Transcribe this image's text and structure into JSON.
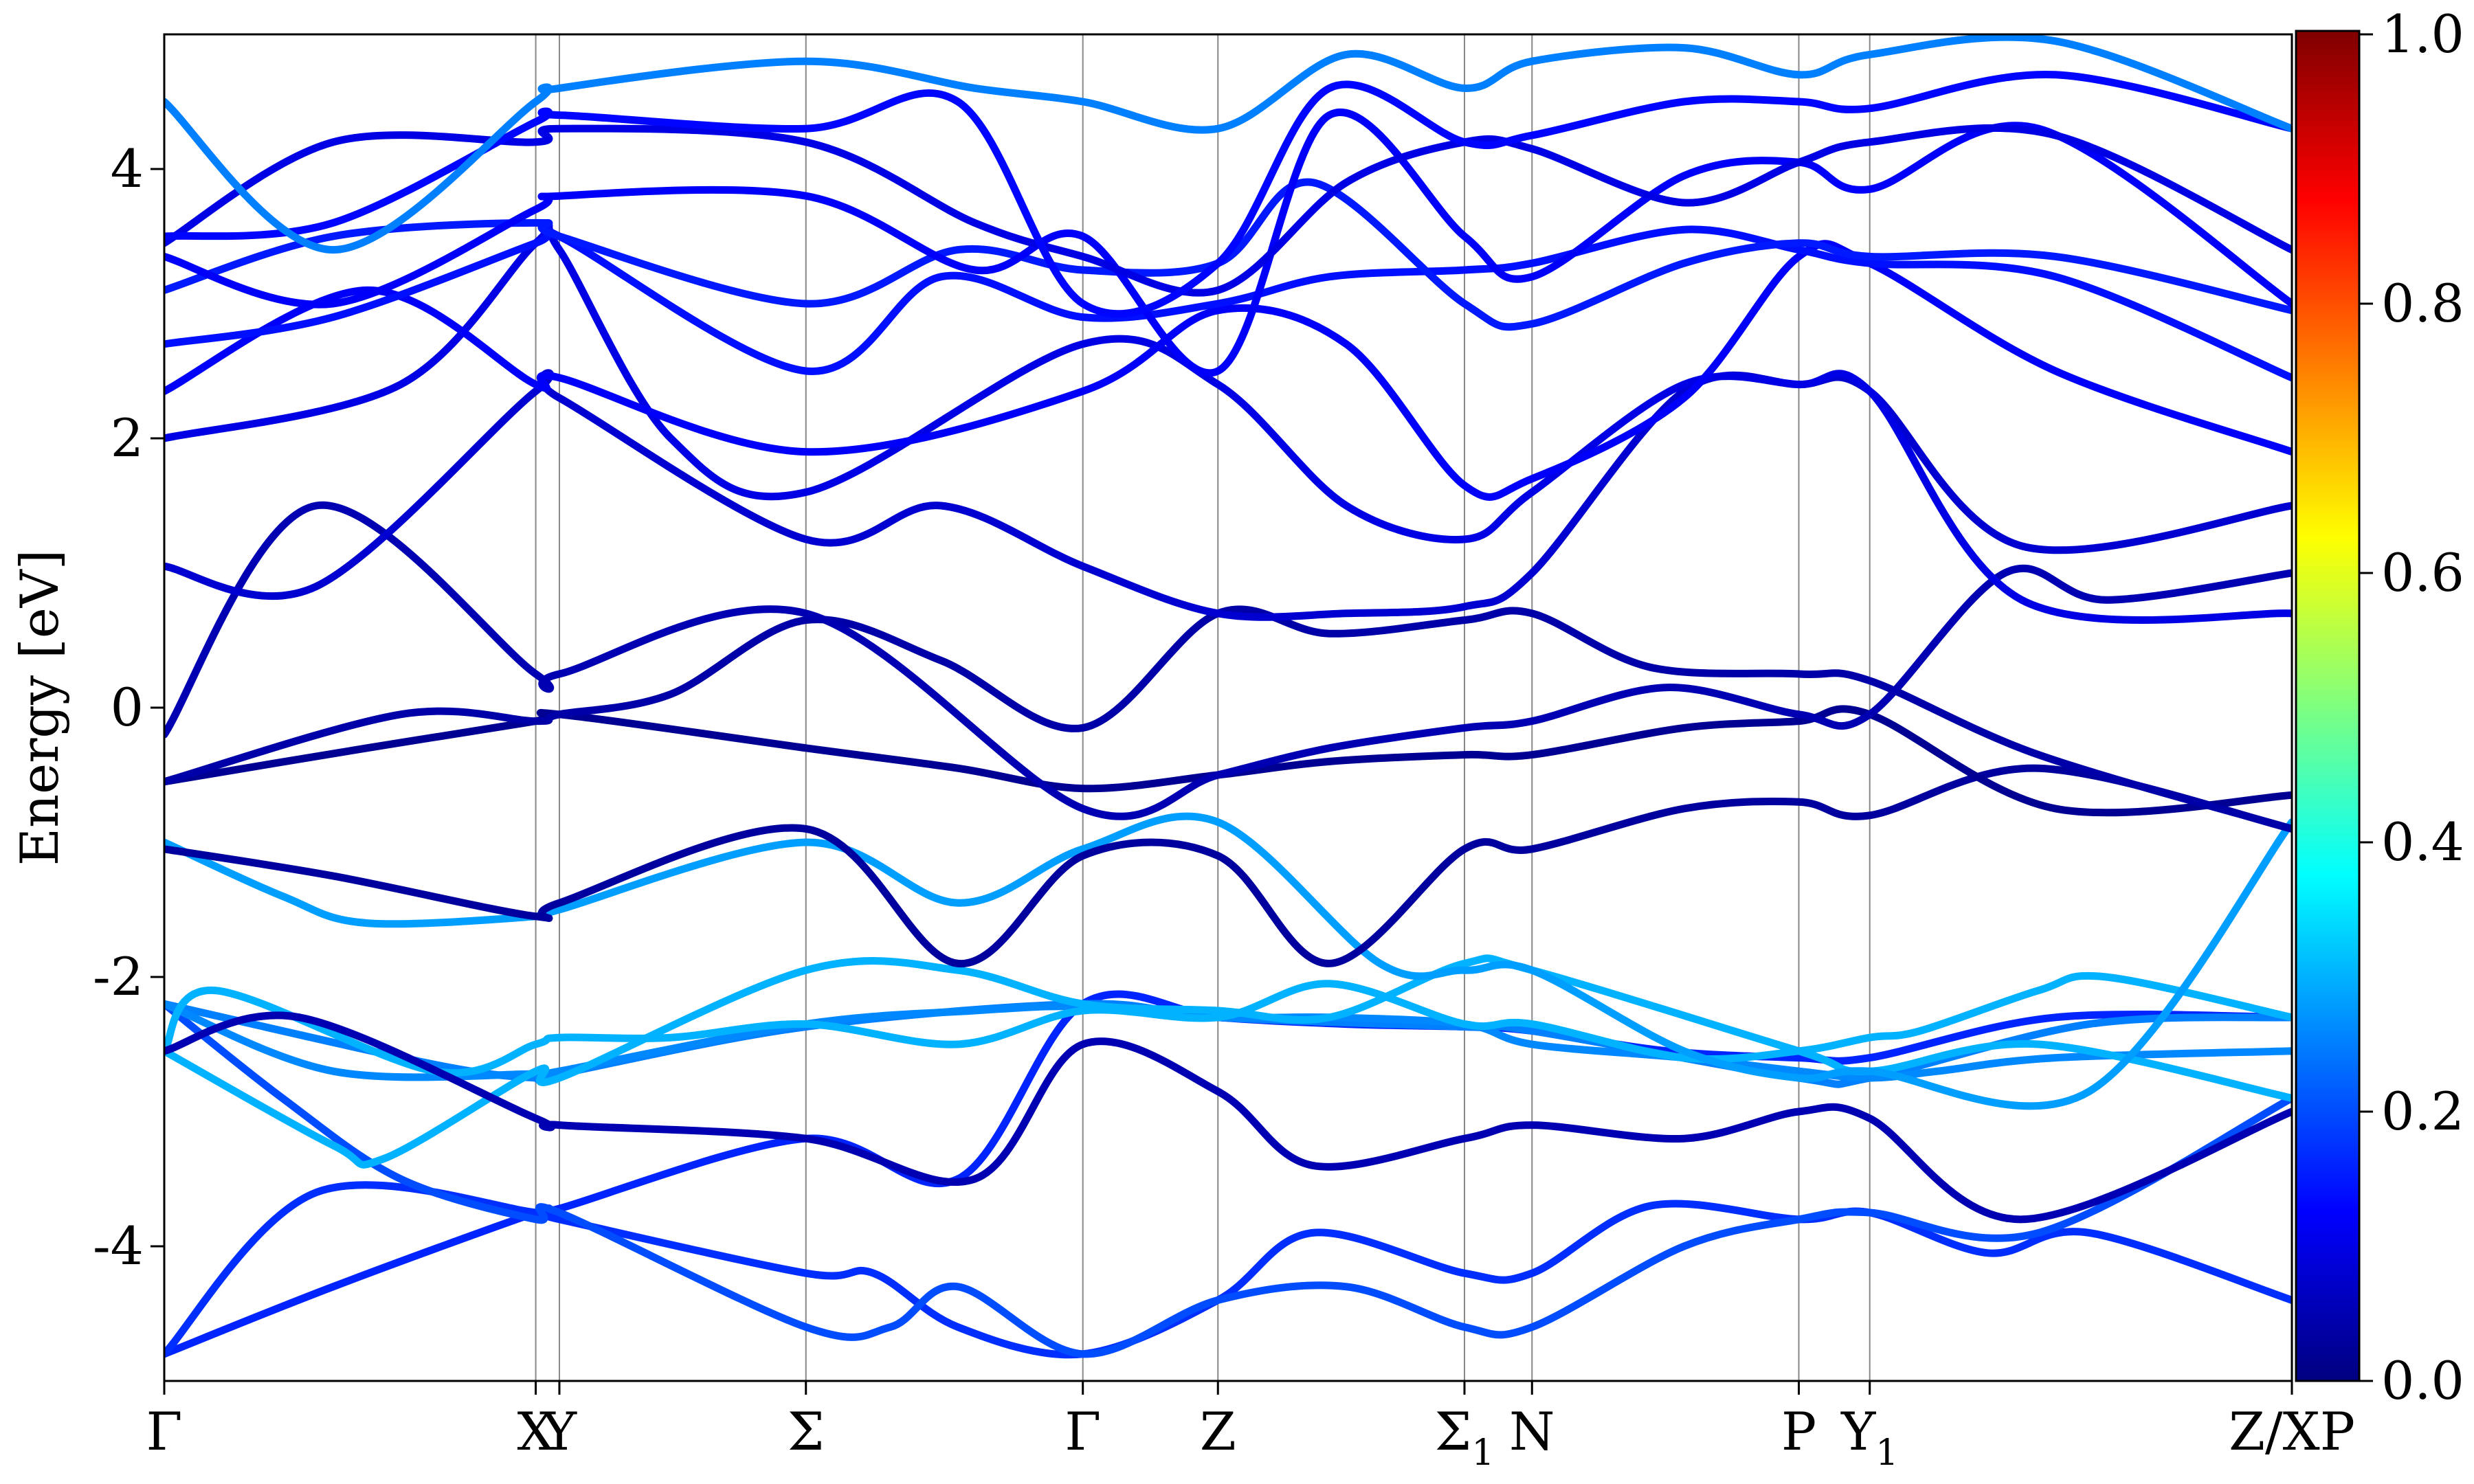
{
  "chart_data": {
    "type": "line",
    "title": "",
    "xlabel": "",
    "ylabel": "Energy [eV]",
    "ylim": [
      -5,
      5
    ],
    "yticks": [
      -4,
      -2,
      0,
      2,
      4
    ],
    "grid": false,
    "legend": "none",
    "kpath": {
      "positions": [
        0,
        1.1,
        1.17,
        1.9,
        2.72,
        3.12,
        3.85,
        4.05,
        4.84,
        5.05,
        6.3
      ],
      "labels": [
        "Γ",
        "X",
        "Y",
        "Σ",
        "Γ",
        "Z",
        "Σ1",
        "N",
        "P",
        "Y1",
        "Z/XP"
      ],
      "xlim": [
        0,
        6.3
      ],
      "tick_text": [
        "Γ",
        "XY",
        "Σ",
        "Γ",
        "Z",
        "Σ",
        "N",
        "P",
        "Y",
        "Z/XP"
      ],
      "subscripts": {
        "Σ1": "1",
        "Y1": "1"
      }
    },
    "colorbar": {
      "label": "",
      "range": [
        0,
        1
      ],
      "ticks": [
        "0.0",
        "0.2",
        "0.4",
        "0.6",
        "0.8",
        "1.0"
      ],
      "colormap": [
        "#00007f",
        "#0000ff",
        "#007fff",
        "#00ffff",
        "#7fff7f",
        "#ffff00",
        "#ff7f00",
        "#ff0000",
        "#7f0000"
      ]
    },
    "series": [
      {
        "color_value": 0.16,
        "x": [
          0,
          0.5,
          1.1,
          1.17,
          1.9,
          2.35,
          2.72,
          3.12,
          3.5,
          3.85,
          4.05,
          4.45,
          4.84,
          5.05,
          5.6,
          6.3
        ],
        "y": [
          -4.8,
          -4.3,
          -3.75,
          -3.72,
          -3.2,
          -3.5,
          -2.2,
          -2.3,
          -2.35,
          -2.37,
          -2.4,
          -2.55,
          -2.6,
          -2.6,
          -2.3,
          -2.3
        ]
      },
      {
        "color_value": 0.17,
        "x": [
          0,
          0.45,
          1.1,
          1.17,
          1.9,
          2.1,
          2.35,
          2.72,
          3.12,
          3.4,
          3.85,
          4.05,
          4.4,
          4.84,
          5.05,
          5.4,
          5.7,
          6.3
        ],
        "y": [
          -4.8,
          -3.6,
          -3.75,
          -3.8,
          -4.2,
          -4.2,
          -4.6,
          -4.8,
          -4.4,
          -3.9,
          -4.2,
          -4.2,
          -3.7,
          -3.8,
          -3.75,
          -4.05,
          -3.9,
          -4.4
        ]
      },
      {
        "color_value": 0.2,
        "x": [
          0,
          0.35,
          0.7,
          1.1,
          1.17,
          1.9,
          2.15,
          2.35,
          2.72,
          3.12,
          3.5,
          3.85,
          4.05,
          4.5,
          4.84,
          5.05,
          5.55,
          6.3
        ],
        "y": [
          -2.2,
          -2.9,
          -3.5,
          -3.8,
          -3.75,
          -4.6,
          -4.6,
          -4.3,
          -4.8,
          -4.4,
          -4.3,
          -4.6,
          -4.6,
          -4.0,
          -3.8,
          -3.75,
          -3.9,
          -2.9
        ]
      },
      {
        "color_value": 0.25,
        "x": [
          0,
          0.8,
          1.1,
          1.17,
          1.9,
          2.72,
          3.12,
          3.85,
          4.05,
          4.84,
          5.05,
          5.7,
          6.3
        ],
        "y": [
          -2.2,
          -2.65,
          -2.75,
          -2.72,
          -2.37,
          -2.2,
          -2.3,
          -2.37,
          -2.4,
          -2.75,
          -2.75,
          -2.35,
          -2.3
        ]
      },
      {
        "color_value": 0.26,
        "x": [
          0,
          0.5,
          1.1,
          1.17,
          1.9,
          2.4,
          2.72,
          3.12,
          3.45,
          3.85,
          4.05,
          4.5,
          4.84,
          5.05,
          5.25,
          5.6,
          6.3
        ],
        "y": [
          -2.2,
          -2.7,
          -2.72,
          -2.7,
          -2.35,
          -2.25,
          -2.22,
          -2.3,
          -2.3,
          -2.35,
          -2.5,
          -2.6,
          -2.7,
          -2.75,
          -2.7,
          -2.6,
          -2.55
        ]
      },
      {
        "color_value": 0.3,
        "x": [
          0,
          0.15,
          0.8,
          1.1,
          1.17,
          1.5,
          1.9,
          2.35,
          2.72,
          3.12,
          3.45,
          3.85,
          4.05,
          4.5,
          4.84,
          5.05,
          5.2,
          5.55,
          5.75,
          6.3
        ],
        "y": [
          -2.55,
          -2.1,
          -2.7,
          -2.5,
          -2.45,
          -2.45,
          -2.35,
          -2.5,
          -2.25,
          -2.3,
          -2.05,
          -2.35,
          -2.35,
          -2.6,
          -2.55,
          -2.45,
          -2.4,
          -2.1,
          -2.0,
          -2.3
        ]
      },
      {
        "color_value": 0.3,
        "x": [
          0,
          0.5,
          0.65,
          1.1,
          1.17,
          1.9,
          2.35,
          2.72,
          3.12,
          3.45,
          3.85,
          4.05,
          4.84,
          5.05,
          5.55,
          6.3
        ],
        "y": [
          -2.55,
          -3.25,
          -3.35,
          -2.7,
          -2.75,
          -1.95,
          -1.95,
          -2.2,
          -2.25,
          -2.3,
          -1.9,
          -1.95,
          -2.55,
          -2.7,
          -2.5,
          -2.9
        ]
      },
      {
        "color_value": 0.28,
        "x": [
          0,
          0.35,
          0.6,
          1.1,
          1.17,
          1.9,
          2.35,
          2.72,
          3.12,
          3.6,
          3.85,
          4.05,
          4.5,
          4.84,
          5.05,
          5.7,
          6.3
        ],
        "y": [
          -1.0,
          -1.4,
          -1.6,
          -1.55,
          -1.5,
          -1.0,
          -1.45,
          -1.05,
          -0.85,
          -1.9,
          -1.95,
          -1.95,
          -2.55,
          -2.75,
          -2.7,
          -2.85,
          -0.85
        ]
      },
      {
        "color_value": 0.05,
        "x": [
          0,
          0.4,
          1.1,
          1.17,
          1.9,
          2.4,
          2.72,
          3.12,
          3.4,
          3.85,
          4.05,
          4.5,
          4.84,
          5.05,
          5.5,
          6.3
        ],
        "y": [
          -2.55,
          -2.3,
          -3.05,
          -3.1,
          -3.2,
          -3.5,
          -2.5,
          -2.85,
          -3.4,
          -3.2,
          -3.1,
          -3.2,
          -3.0,
          -3.05,
          -3.8,
          -3.0
        ]
      },
      {
        "color_value": 0.03,
        "x": [
          0,
          0.5,
          1.1,
          1.17,
          1.9,
          2.35,
          2.72,
          3.12,
          3.45,
          3.85,
          4.05,
          4.5,
          4.84,
          5.05,
          5.55,
          6.3
        ],
        "y": [
          -1.05,
          -1.25,
          -1.55,
          -1.45,
          -0.9,
          -1.9,
          -1.1,
          -1.1,
          -1.9,
          -1.05,
          -1.05,
          -0.75,
          -0.7,
          -0.8,
          -0.45,
          -0.9
        ]
      },
      {
        "color_value": 0.02,
        "x": [
          0,
          0.6,
          1.1,
          1.17,
          1.9,
          2.35,
          2.72,
          3.12,
          3.45,
          3.85,
          4.05,
          4.5,
          4.84,
          5.05,
          5.6,
          6.3
        ],
        "y": [
          -0.55,
          -0.3,
          -0.1,
          -0.05,
          -0.3,
          -0.45,
          -0.6,
          -0.5,
          -0.4,
          -0.35,
          -0.35,
          -0.15,
          -0.1,
          -0.05,
          -0.75,
          -0.65
        ]
      },
      {
        "color_value": 0.04,
        "x": [
          0,
          0.7,
          1.1,
          1.17,
          1.5,
          1.9,
          2.3,
          2.72,
          3.12,
          3.45,
          3.85,
          4.05,
          4.4,
          4.84,
          5.05,
          5.55,
          6.3
        ],
        "y": [
          -0.55,
          -0.05,
          -0.1,
          -0.05,
          0.1,
          0.65,
          0.35,
          -0.15,
          0.7,
          0.55,
          0.65,
          0.7,
          0.3,
          0.25,
          0.2,
          -0.35,
          -0.9
        ]
      },
      {
        "color_value": 0.05,
        "x": [
          0,
          0.45,
          1.1,
          1.17,
          1.9,
          2.72,
          3.12,
          3.45,
          3.85,
          4.05,
          4.45,
          4.84,
          5.05,
          5.45,
          5.75,
          6.3
        ],
        "y": [
          -0.2,
          1.5,
          0.25,
          0.25,
          0.7,
          -0.75,
          -0.5,
          -0.3,
          -0.15,
          -0.1,
          0.15,
          -0.05,
          -0.05,
          1.0,
          0.8,
          1.0
        ]
      },
      {
        "color_value": 0.08,
        "x": [
          0,
          0.45,
          1.1,
          1.17,
          1.9,
          2.3,
          2.72,
          3.12,
          3.5,
          3.85,
          4.05,
          4.5,
          4.84,
          5.05,
          5.5,
          6.3
        ],
        "y": [
          1.05,
          0.9,
          2.35,
          2.3,
          1.25,
          1.5,
          1.05,
          0.7,
          0.7,
          0.75,
          1.0,
          2.35,
          2.4,
          2.35,
          1.2,
          1.5
        ]
      },
      {
        "color_value": 0.1,
        "x": [
          0,
          0.7,
          1.1,
          1.17,
          1.5,
          1.9,
          2.72,
          3.12,
          3.5,
          3.85,
          4.05,
          4.5,
          4.84,
          5.05,
          5.5,
          6.3
        ],
        "y": [
          2.0,
          2.4,
          3.45,
          3.4,
          2.0,
          1.6,
          2.7,
          2.4,
          1.5,
          1.25,
          1.6,
          2.4,
          2.4,
          2.35,
          0.8,
          0.7
        ]
      },
      {
        "color_value": 0.12,
        "x": [
          0,
          0.6,
          1.1,
          1.17,
          1.9,
          2.72,
          3.12,
          3.5,
          3.85,
          4.05,
          4.5,
          4.84,
          5.05,
          5.6,
          6.3
        ],
        "y": [
          2.35,
          3.1,
          2.4,
          2.45,
          1.9,
          2.35,
          2.95,
          2.7,
          1.65,
          1.7,
          2.3,
          3.35,
          3.3,
          2.5,
          1.9
        ]
      },
      {
        "color_value": 0.14,
        "x": [
          0,
          0.5,
          1.1,
          1.17,
          1.9,
          2.3,
          2.72,
          3.12,
          3.45,
          3.85,
          4.05,
          4.5,
          4.84,
          5.05,
          5.6,
          6.3
        ],
        "y": [
          2.7,
          2.9,
          3.45,
          3.5,
          2.5,
          3.2,
          2.9,
          3.0,
          3.2,
          3.25,
          3.3,
          3.55,
          3.4,
          3.3,
          3.2,
          2.45
        ]
      },
      {
        "color_value": 0.15,
        "x": [
          0,
          0.5,
          1.1,
          1.17,
          1.9,
          2.35,
          2.72,
          3.12,
          3.4,
          3.85,
          4.05,
          4.5,
          4.84,
          5.05,
          5.6,
          6.3
        ],
        "y": [
          3.1,
          3.5,
          3.6,
          3.5,
          3.0,
          3.4,
          3.25,
          3.3,
          3.9,
          3.0,
          2.85,
          3.3,
          3.45,
          3.35,
          3.35,
          2.95
        ]
      },
      {
        "color_value": 0.12,
        "x": [
          0,
          0.5,
          1.1,
          1.17,
          1.9,
          2.4,
          2.72,
          3.12,
          3.45,
          3.85,
          4.05,
          4.5,
          4.84,
          5.05,
          5.55,
          6.3
        ],
        "y": [
          3.35,
          3.0,
          3.7,
          3.8,
          3.8,
          3.25,
          3.5,
          2.5,
          4.4,
          3.5,
          3.2,
          3.95,
          4.05,
          3.85,
          4.3,
          3.0
        ]
      },
      {
        "color_value": 0.1,
        "x": [
          0,
          0.5,
          1.1,
          1.17,
          1.9,
          2.4,
          2.72,
          3.12,
          3.5,
          3.85,
          4.05,
          4.5,
          4.84,
          5.05,
          5.6,
          6.3
        ],
        "y": [
          3.45,
          4.2,
          4.2,
          4.3,
          4.2,
          3.6,
          3.35,
          3.1,
          3.9,
          4.2,
          4.15,
          3.75,
          4.05,
          4.2,
          4.25,
          3.4
        ]
      },
      {
        "color_value": 0.13,
        "x": [
          0,
          0.5,
          1.1,
          1.17,
          1.9,
          2.35,
          2.72,
          3.12,
          3.45,
          3.85,
          4.05,
          4.5,
          4.84,
          5.05,
          5.6,
          6.3
        ],
        "y": [
          3.5,
          3.6,
          4.35,
          4.4,
          4.3,
          4.5,
          3.0,
          3.3,
          4.6,
          4.2,
          4.25,
          4.5,
          4.5,
          4.45,
          4.7,
          4.3
        ]
      },
      {
        "color_value": 0.25,
        "x": [
          0,
          0.5,
          1.1,
          1.17,
          1.9,
          2.4,
          2.72,
          3.12,
          3.5,
          3.85,
          4.05,
          4.5,
          4.84,
          5.05,
          5.6,
          6.3
        ],
        "y": [
          4.5,
          3.4,
          4.5,
          4.6,
          4.8,
          4.6,
          4.5,
          4.3,
          4.85,
          4.6,
          4.8,
          4.9,
          4.7,
          4.85,
          4.95,
          4.3
        ]
      }
    ]
  }
}
